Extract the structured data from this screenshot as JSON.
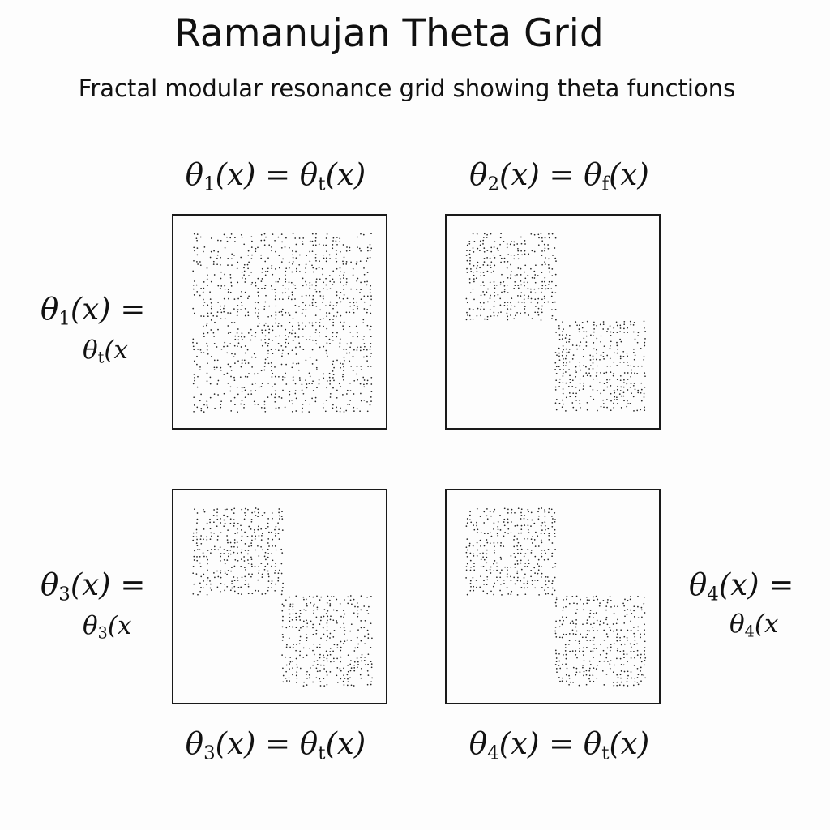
{
  "header": {
    "title": "Ramanujan Theta Grid",
    "subtitle": "Fractal modular resonance grid showing theta functions"
  },
  "panels": [
    {
      "top_caption": {
        "lhs": "θ",
        "lhs_sub": "1",
        "rest": "(x) = θ",
        "rhs_sub": "t",
        "tail": "(x)"
      },
      "side_label": {
        "line1_base": "θ",
        "line1_sub": "1",
        "line1_rest": "(x) =",
        "line2_base": "θ",
        "line2_sub": "t",
        "line2_rest": "(x"
      },
      "pattern": "full"
    },
    {
      "top_caption": {
        "lhs": "θ",
        "lhs_sub": "2",
        "rest": "(x) = θ",
        "rhs_sub": "f",
        "tail": "(x)"
      },
      "pattern": "diagonal"
    },
    {
      "bottom_caption": {
        "lhs": "θ",
        "lhs_sub": "3",
        "rest": "(x) = θ",
        "rhs_sub": "t",
        "tail": "(x)"
      },
      "side_label": {
        "line1_base": "θ",
        "line1_sub": "3",
        "line1_rest": "(x) =",
        "line2_base": "θ",
        "line2_sub": "3",
        "line2_rest": "(x"
      },
      "pattern": "diagonal"
    },
    {
      "bottom_caption": {
        "lhs": "θ",
        "lhs_sub": "4",
        "rest": "(x) = θ",
        "rhs_sub": "t",
        "tail": "(x)"
      },
      "side_label": {
        "line1_base": "θ",
        "line1_sub": "4",
        "line1_rest": "(x) =",
        "line2_base": "θ",
        "line2_sub": "4",
        "line2_rest": "(x"
      },
      "pattern": "diagonal"
    }
  ],
  "colors": {
    "ink": "#111111",
    "dots": "#222222",
    "background": "#fdfdfd"
  }
}
